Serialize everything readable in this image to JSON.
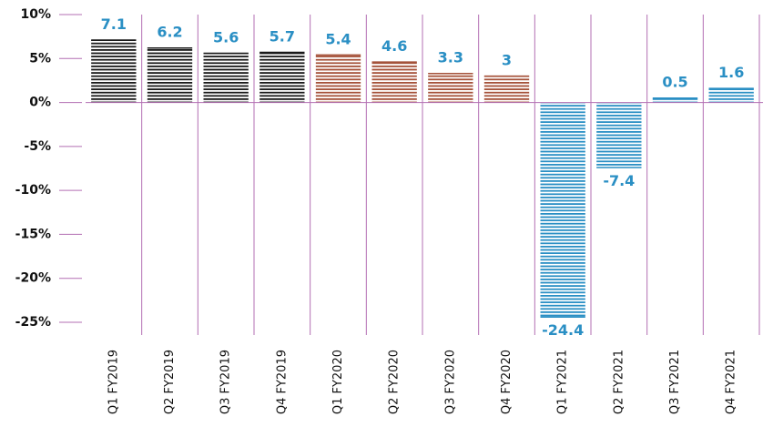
{
  "chart_data": {
    "type": "bar",
    "categories": [
      "Q1 FY2019",
      "Q2 FY2019",
      "Q3 FY2019",
      "Q4 FY2019",
      "Q1 FY2020",
      "Q2 FY2020",
      "Q3 FY2020",
      "Q4 FY2020",
      "Q1 FY2021",
      "Q2 FY2021",
      "Q3 FY2021",
      "Q4 FY2021"
    ],
    "values": [
      7.1,
      6.2,
      5.6,
      5.7,
      5.4,
      4.6,
      3.3,
      3,
      -24.4,
      -7.4,
      0.5,
      1.6
    ],
    "colors": [
      "#1a1a1a",
      "#1a1a1a",
      "#1a1a1a",
      "#1a1a1a",
      "#a5523a",
      "#a5523a",
      "#a5523a",
      "#a5523a",
      "#2a8fc4",
      "#2a8fc4",
      "#2a8fc4",
      "#2a8fc4"
    ],
    "ylim": [
      -25,
      10
    ],
    "yticks": [
      {
        "value": 10,
        "label": "10%"
      },
      {
        "value": 5,
        "label": "5%"
      },
      {
        "value": 0,
        "label": "0%"
      },
      {
        "value": -5,
        "label": "-5%"
      },
      {
        "value": -10,
        "label": "-10%"
      },
      {
        "value": -15,
        "label": "-15%"
      },
      {
        "value": -20,
        "label": "-20%"
      },
      {
        "value": -25,
        "label": "-25%"
      }
    ]
  }
}
